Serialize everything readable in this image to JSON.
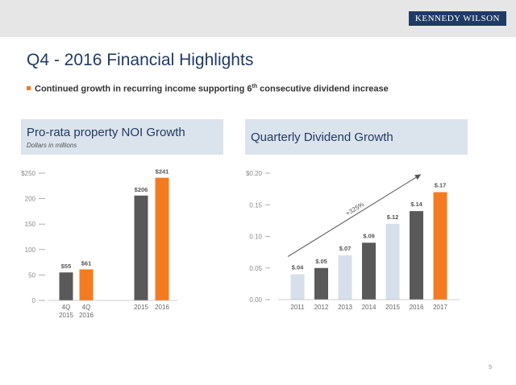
{
  "header": {
    "logo": "KENNEDY WILSON"
  },
  "slide": {
    "title": "Q4 - 2016 Financial Highlights",
    "bullet_main": "Continued growth in recurring income supporting 6",
    "bullet_sup": "th",
    "bullet_tail": " consecutive dividend increase",
    "page_number": "5"
  },
  "colors": {
    "navy": "#1f3a64",
    "orange": "#f47b20",
    "dark_gray": "#595959",
    "light_blue": "#d6dfea"
  },
  "chart_data": [
    {
      "type": "bar",
      "title": "Pro-rata property NOI Growth",
      "subtitle": "Dollars in millions",
      "categories": [
        [
          "4Q",
          "2015"
        ],
        [
          "4Q",
          "2016"
        ],
        [
          "2015"
        ],
        [
          "2016"
        ]
      ],
      "values": [
        55,
        61,
        206,
        241
      ],
      "data_labels": [
        "$55",
        "$61",
        "$206",
        "$241"
      ],
      "bar_colors": [
        "#595959",
        "#f47b20",
        "#595959",
        "#f47b20"
      ],
      "ylim": [
        0,
        250
      ],
      "yticks": [
        0,
        50,
        100,
        150,
        200,
        250
      ],
      "ytick_labels": [
        "0",
        "50",
        "100",
        "150",
        "200",
        "$250"
      ],
      "grid": false
    },
    {
      "type": "bar",
      "title": "Quarterly Dividend Growth",
      "categories": [
        "2011",
        "2012",
        "2013",
        "2014",
        "2015",
        "2016",
        "2017"
      ],
      "values": [
        0.04,
        0.05,
        0.07,
        0.09,
        0.12,
        0.14,
        0.17
      ],
      "data_labels": [
        "$.04",
        "$.05",
        "$.07",
        "$.09",
        "$.12",
        "$.14",
        "$.17"
      ],
      "bar_colors": [
        "#d6dfea",
        "#595959",
        "#d6dfea",
        "#595959",
        "#d6dfea",
        "#595959",
        "#f47b20"
      ],
      "ylim": [
        0,
        0.2
      ],
      "yticks": [
        0,
        0.05,
        0.1,
        0.15,
        0.2
      ],
      "ytick_labels": [
        "0.00",
        "0.05",
        "0.10",
        "0.15",
        "$0.20"
      ],
      "annotation": "+325%",
      "grid": false
    }
  ]
}
